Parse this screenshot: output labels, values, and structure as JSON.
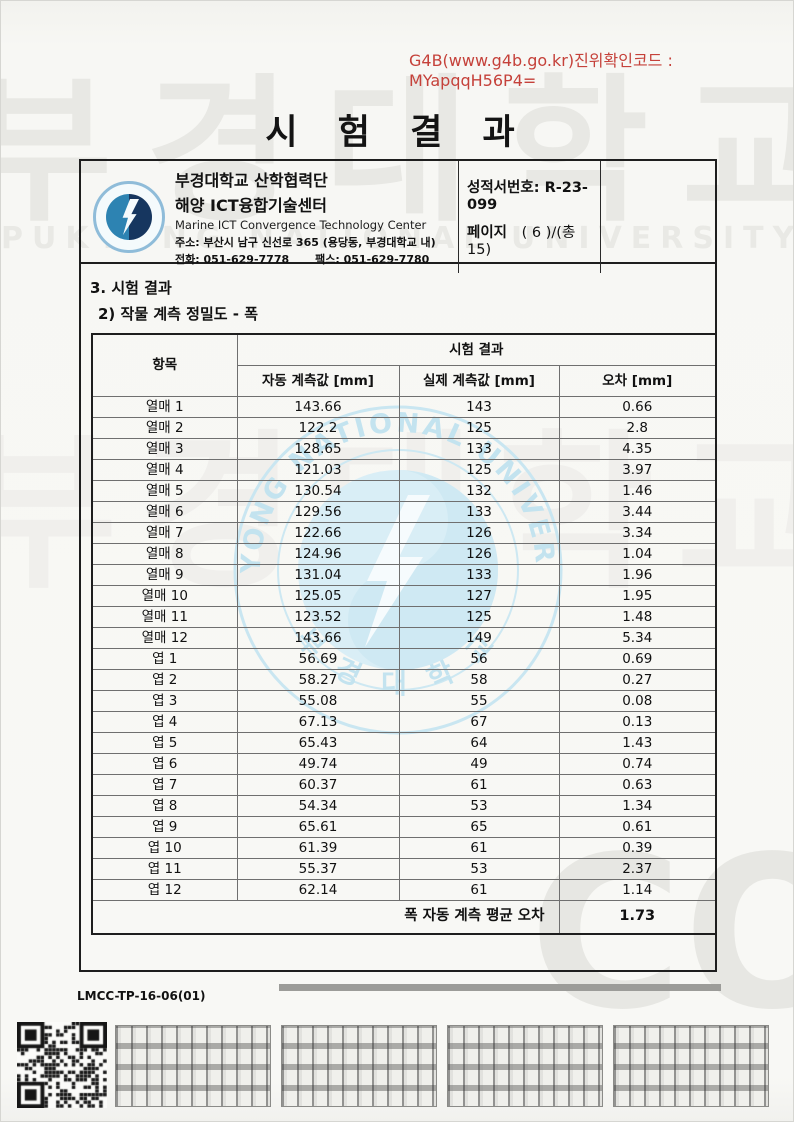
{
  "verification": {
    "code_text": "G4B(www.g4b.go.kr)진위확인코드 : MYapqqH56P4="
  },
  "title": "시 험 결 과",
  "header": {
    "org_line1": "부경대학교 산학협력단",
    "org_line2": "해양 ICT융합기술센터",
    "org_line3": "Marine ICT Convergence Technology Center",
    "address": "주소: 부산시 남구 신선로 365 (용당동, 부경대학교 내)",
    "phone": "전화: 051-629-7778",
    "fax": "팩스: 051-629-7780",
    "report_no_label": "성적서번호:",
    "report_no": "R-23-099",
    "page_label": "페이지",
    "page_value": "( 6 )/(총 15)"
  },
  "sections": {
    "heading1": "3. 시험 결과",
    "heading2": "2) 작물 계측 정밀도 - 폭"
  },
  "table": {
    "item_header": "항목",
    "group_header": "시험 결과",
    "columns": [
      "자동 계측값 [mm]",
      "실제 계측값 [mm]",
      "오차 [mm]"
    ],
    "rows": [
      {
        "item": "열매 1",
        "auto": "143.66",
        "actual": "143",
        "error": "0.66"
      },
      {
        "item": "열매 2",
        "auto": "122.2",
        "actual": "125",
        "error": "2.8"
      },
      {
        "item": "열매 3",
        "auto": "128.65",
        "actual": "133",
        "error": "4.35"
      },
      {
        "item": "열매 4",
        "auto": "121.03",
        "actual": "125",
        "error": "3.97"
      },
      {
        "item": "열매 5",
        "auto": "130.54",
        "actual": "132",
        "error": "1.46"
      },
      {
        "item": "열매 6",
        "auto": "129.56",
        "actual": "133",
        "error": "3.44"
      },
      {
        "item": "열매 7",
        "auto": "122.66",
        "actual": "126",
        "error": "3.34"
      },
      {
        "item": "열매 8",
        "auto": "124.96",
        "actual": "126",
        "error": "1.04"
      },
      {
        "item": "열매 9",
        "auto": "131.04",
        "actual": "133",
        "error": "1.96"
      },
      {
        "item": "열매 10",
        "auto": "125.05",
        "actual": "127",
        "error": "1.95"
      },
      {
        "item": "열매 11",
        "auto": "123.52",
        "actual": "125",
        "error": "1.48"
      },
      {
        "item": "열매 12",
        "auto": "143.66",
        "actual": "149",
        "error": "5.34"
      },
      {
        "item": "엽 1",
        "auto": "56.69",
        "actual": "56",
        "error": "0.69"
      },
      {
        "item": "엽 2",
        "auto": "58.27",
        "actual": "58",
        "error": "0.27"
      },
      {
        "item": "엽 3",
        "auto": "55.08",
        "actual": "55",
        "error": "0.08"
      },
      {
        "item": "엽 4",
        "auto": "67.13",
        "actual": "67",
        "error": "0.13"
      },
      {
        "item": "엽 5",
        "auto": "65.43",
        "actual": "64",
        "error": "1.43"
      },
      {
        "item": "엽 6",
        "auto": "49.74",
        "actual": "49",
        "error": "0.74"
      },
      {
        "item": "엽 7",
        "auto": "60.37",
        "actual": "61",
        "error": "0.63"
      },
      {
        "item": "엽 8",
        "auto": "54.34",
        "actual": "53",
        "error": "1.34"
      },
      {
        "item": "엽 9",
        "auto": "65.61",
        "actual": "65",
        "error": "0.61"
      },
      {
        "item": "엽 10",
        "auto": "61.39",
        "actual": "61",
        "error": "0.39"
      },
      {
        "item": "엽 11",
        "auto": "55.37",
        "actual": "53",
        "error": "2.37"
      },
      {
        "item": "엽 12",
        "auto": "62.14",
        "actual": "61",
        "error": "1.14"
      }
    ],
    "footer_label": "폭 자동 계측 평균 오차",
    "footer_value": "1.73"
  },
  "footer": {
    "doc_code": "LMCC-TP-16-06(01)"
  },
  "watermarks": {
    "univ_kr": "부경대학교",
    "univ_en": "PUKYONG NATIONAL UNIVERSITY",
    "seal_ring_top": "PUKYONG NATIONAL UNIVERSITY",
    "seal_ring_bottom": "부 경 대 학 교",
    "copy": "COPY"
  },
  "colors": {
    "accent_red": "#c5413a",
    "logo_blue": "#2d83b2",
    "logo_navy": "#16365f",
    "seal_blue": "#c3e3ef",
    "bar_gray": "#9c9c99"
  }
}
